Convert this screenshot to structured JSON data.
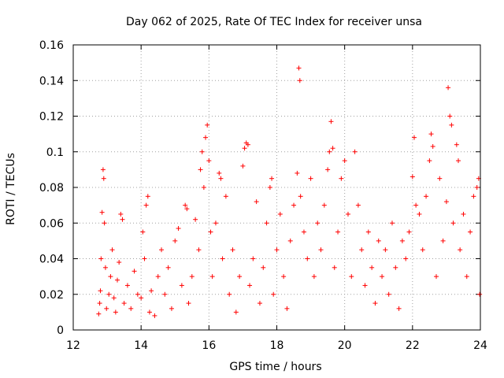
{
  "chart_data": {
    "type": "scatter",
    "title": "Day 062 of 2025, Rate Of TEC Index for receiver unsa",
    "xlabel": "GPS time / hours",
    "ylabel": "ROTI / TECUs",
    "xlim": [
      12,
      24
    ],
    "ylim": [
      0,
      0.16
    ],
    "x_ticks": [
      12,
      14,
      16,
      18,
      20,
      22,
      24
    ],
    "x_tick_labels": [
      "12",
      "14",
      "16",
      "18",
      "20",
      "22",
      "24"
    ],
    "y_ticks": [
      0,
      0.02,
      0.04,
      0.06,
      0.08,
      0.1,
      0.12,
      0.14,
      0.16
    ],
    "y_tick_labels": [
      "0",
      "0.02",
      "0.04",
      "0.06",
      "0.08",
      "0.1",
      "0.12",
      "0.14",
      "0.16"
    ],
    "grid": true,
    "marker": "plus",
    "marker_color": "#ff0000",
    "series": [
      {
        "name": "ROTI",
        "points": [
          [
            12.75,
            0.009
          ],
          [
            12.78,
            0.015
          ],
          [
            12.8,
            0.022
          ],
          [
            12.82,
            0.04
          ],
          [
            12.85,
            0.066
          ],
          [
            12.88,
            0.09
          ],
          [
            12.9,
            0.085
          ],
          [
            12.92,
            0.06
          ],
          [
            12.95,
            0.035
          ],
          [
            12.98,
            0.012
          ],
          [
            13.05,
            0.02
          ],
          [
            13.1,
            0.03
          ],
          [
            13.15,
            0.045
          ],
          [
            13.2,
            0.018
          ],
          [
            13.25,
            0.01
          ],
          [
            13.3,
            0.028
          ],
          [
            13.35,
            0.038
          ],
          [
            13.4,
            0.065
          ],
          [
            13.45,
            0.062
          ],
          [
            13.5,
            0.015
          ],
          [
            13.6,
            0.025
          ],
          [
            13.7,
            0.012
          ],
          [
            13.8,
            0.033
          ],
          [
            13.9,
            0.02
          ],
          [
            14.0,
            0.018
          ],
          [
            14.05,
            0.055
          ],
          [
            14.1,
            0.04
          ],
          [
            14.15,
            0.07
          ],
          [
            14.2,
            0.075
          ],
          [
            14.25,
            0.01
          ],
          [
            14.3,
            0.022
          ],
          [
            14.4,
            0.008
          ],
          [
            14.5,
            0.03
          ],
          [
            14.6,
            0.045
          ],
          [
            14.7,
            0.02
          ],
          [
            14.8,
            0.035
          ],
          [
            14.9,
            0.012
          ],
          [
            15.0,
            0.05
          ],
          [
            15.1,
            0.057
          ],
          [
            15.2,
            0.025
          ],
          [
            15.3,
            0.07
          ],
          [
            15.35,
            0.068
          ],
          [
            15.4,
            0.015
          ],
          [
            15.5,
            0.03
          ],
          [
            15.6,
            0.062
          ],
          [
            15.7,
            0.045
          ],
          [
            15.75,
            0.09
          ],
          [
            15.8,
            0.1
          ],
          [
            15.85,
            0.08
          ],
          [
            15.9,
            0.108
          ],
          [
            15.95,
            0.115
          ],
          [
            16.0,
            0.095
          ],
          [
            16.05,
            0.055
          ],
          [
            16.1,
            0.03
          ],
          [
            16.2,
            0.06
          ],
          [
            16.3,
            0.088
          ],
          [
            16.35,
            0.085
          ],
          [
            16.4,
            0.04
          ],
          [
            16.5,
            0.075
          ],
          [
            16.6,
            0.02
          ],
          [
            16.7,
            0.045
          ],
          [
            16.8,
            0.01
          ],
          [
            16.9,
            0.03
          ],
          [
            17.0,
            0.092
          ],
          [
            17.05,
            0.102
          ],
          [
            17.1,
            0.105
          ],
          [
            17.15,
            0.104
          ],
          [
            17.2,
            0.025
          ],
          [
            17.3,
            0.04
          ],
          [
            17.4,
            0.072
          ],
          [
            17.5,
            0.015
          ],
          [
            17.6,
            0.035
          ],
          [
            17.7,
            0.06
          ],
          [
            17.8,
            0.08
          ],
          [
            17.85,
            0.085
          ],
          [
            17.9,
            0.02
          ],
          [
            18.0,
            0.045
          ],
          [
            18.1,
            0.065
          ],
          [
            18.2,
            0.03
          ],
          [
            18.3,
            0.012
          ],
          [
            18.4,
            0.05
          ],
          [
            18.5,
            0.07
          ],
          [
            18.6,
            0.088
          ],
          [
            18.65,
            0.147
          ],
          [
            18.68,
            0.14
          ],
          [
            18.7,
            0.075
          ],
          [
            18.8,
            0.055
          ],
          [
            18.9,
            0.04
          ],
          [
            19.0,
            0.085
          ],
          [
            19.1,
            0.03
          ],
          [
            19.2,
            0.06
          ],
          [
            19.3,
            0.045
          ],
          [
            19.4,
            0.07
          ],
          [
            19.5,
            0.09
          ],
          [
            19.55,
            0.1
          ],
          [
            19.6,
            0.117
          ],
          [
            19.65,
            0.102
          ],
          [
            19.7,
            0.035
          ],
          [
            19.8,
            0.055
          ],
          [
            19.9,
            0.085
          ],
          [
            20.0,
            0.095
          ],
          [
            20.1,
            0.065
          ],
          [
            20.2,
            0.03
          ],
          [
            20.3,
            0.1
          ],
          [
            20.4,
            0.07
          ],
          [
            20.5,
            0.045
          ],
          [
            20.6,
            0.025
          ],
          [
            20.7,
            0.055
          ],
          [
            20.8,
            0.035
          ],
          [
            20.9,
            0.015
          ],
          [
            21.0,
            0.05
          ],
          [
            21.1,
            0.03
          ],
          [
            21.2,
            0.045
          ],
          [
            21.3,
            0.02
          ],
          [
            21.4,
            0.06
          ],
          [
            21.5,
            0.035
          ],
          [
            21.6,
            0.012
          ],
          [
            21.7,
            0.05
          ],
          [
            21.8,
            0.04
          ],
          [
            21.9,
            0.055
          ],
          [
            22.0,
            0.086
          ],
          [
            22.05,
            0.108
          ],
          [
            22.1,
            0.07
          ],
          [
            22.2,
            0.065
          ],
          [
            22.3,
            0.045
          ],
          [
            22.4,
            0.075
          ],
          [
            22.5,
            0.095
          ],
          [
            22.55,
            0.11
          ],
          [
            22.6,
            0.103
          ],
          [
            22.7,
            0.03
          ],
          [
            22.8,
            0.085
          ],
          [
            22.9,
            0.05
          ],
          [
            23.0,
            0.072
          ],
          [
            23.05,
            0.136
          ],
          [
            23.1,
            0.12
          ],
          [
            23.15,
            0.115
          ],
          [
            23.2,
            0.06
          ],
          [
            23.3,
            0.104
          ],
          [
            23.35,
            0.095
          ],
          [
            23.4,
            0.045
          ],
          [
            23.5,
            0.065
          ],
          [
            23.6,
            0.03
          ],
          [
            23.7,
            0.055
          ],
          [
            23.8,
            0.075
          ],
          [
            23.9,
            0.08
          ],
          [
            23.95,
            0.085
          ],
          [
            23.98,
            0.02
          ]
        ]
      }
    ]
  }
}
